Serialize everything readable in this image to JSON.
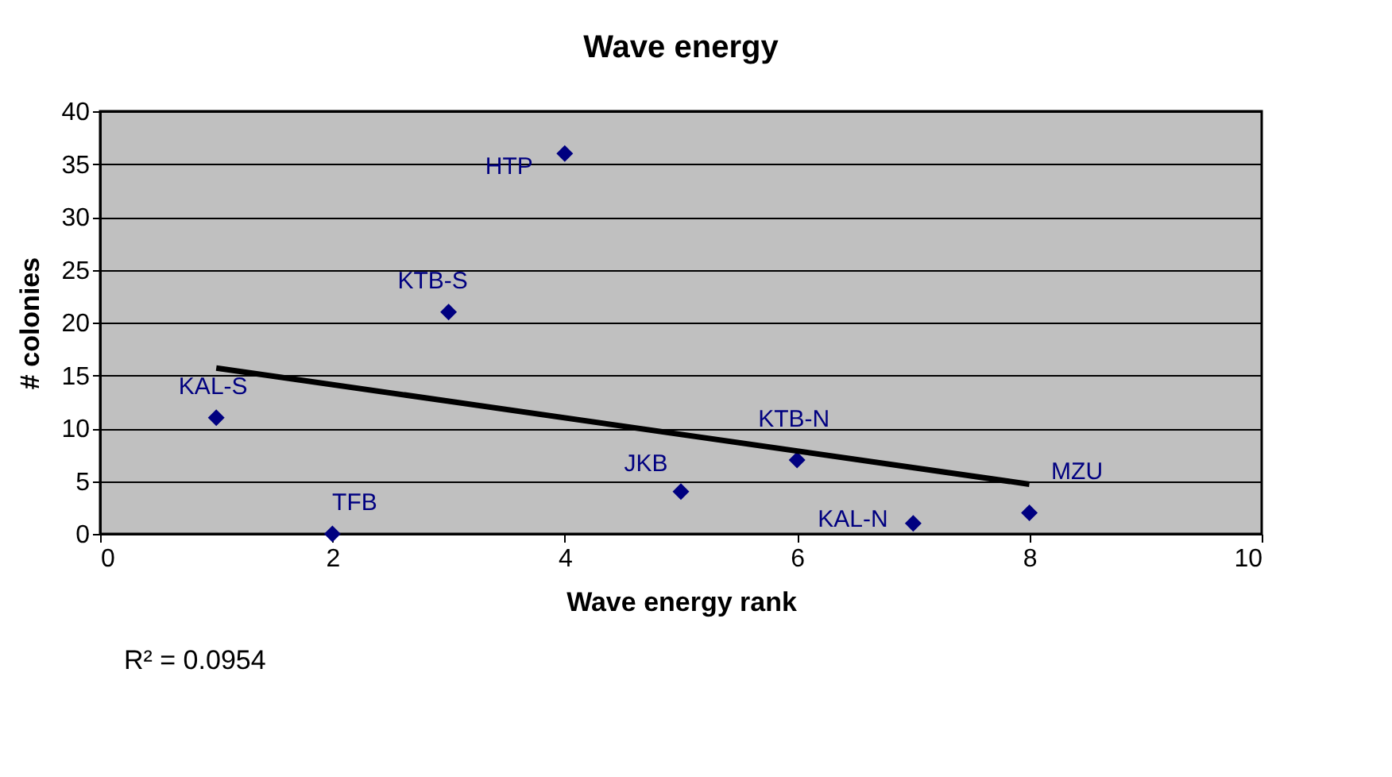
{
  "chart_data": {
    "type": "scatter",
    "title": "Wave energy",
    "xlabel": "Wave energy rank",
    "ylabel": "# colonies",
    "x": [
      1,
      2,
      3,
      4,
      5,
      6,
      7,
      8
    ],
    "series": [
      {
        "color": "#000080",
        "marker": "diamond",
        "values": [
          11,
          0,
          21,
          36,
          4,
          7,
          1,
          2
        ]
      },
      {
        "type": "line",
        "marker": "none",
        "color": "#000000",
        "x": [
          1,
          8
        ],
        "values": [
          15.7,
          4.7
        ]
      }
    ],
    "xlim": [
      0,
      10
    ],
    "xticks": [
      0,
      2,
      4,
      6,
      8,
      10
    ],
    "ylim": [
      0,
      40
    ],
    "yticks": [
      0,
      5,
      10,
      15,
      20,
      25,
      30,
      35,
      40
    ],
    "grid": "y",
    "annotations": [
      {
        "text": "KAL-S",
        "x": 1,
        "y": 11
      },
      {
        "text": "TFB",
        "x": 2,
        "y": 0
      },
      {
        "text": "KTB-S",
        "x": 3,
        "y": 21
      },
      {
        "text": "HTP",
        "x": 4,
        "y": 36
      },
      {
        "text": "JKB",
        "x": 5,
        "y": 4
      },
      {
        "text": "KTB-N",
        "x": 6,
        "y": 7
      },
      {
        "text": "KAL-N",
        "x": 7,
        "y": 1
      },
      {
        "text": "MZU",
        "x": 8,
        "y": 2
      },
      "R² = 0.0954"
    ]
  }
}
